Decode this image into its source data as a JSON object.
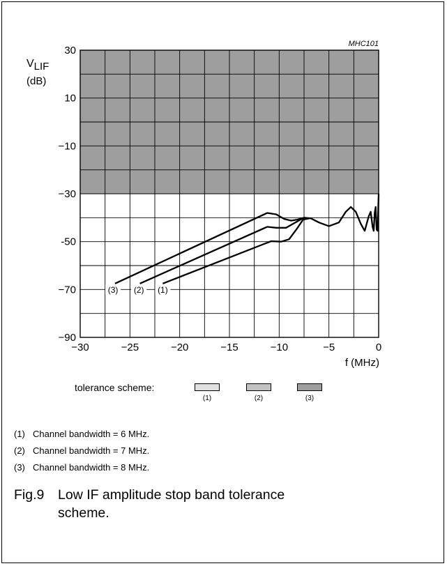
{
  "chart_data": {
    "type": "line",
    "id_label": "MHC101",
    "ylabel_main": "V",
    "ylabel_sub": "LIF",
    "ylabel_unit": "(dB)",
    "xlabel": "f (MHz)",
    "xlim": [
      -30,
      0
    ],
    "ylim": [
      -90,
      30
    ],
    "x_ticks": [
      "−30",
      "−25",
      "−20",
      "−15",
      "−10",
      "−5",
      "0"
    ],
    "x_tick_values": [
      -30,
      -25,
      -20,
      -15,
      -10,
      -5,
      0
    ],
    "y_ticks": [
      "30",
      "10",
      "−10",
      "−30",
      "-50",
      "−70",
      "−90"
    ],
    "y_tick_values": [
      30,
      10,
      -10,
      -30,
      -50,
      -70,
      -90
    ],
    "x_grid_step": 2.5,
    "y_grid_step": 10,
    "stop_band": {
      "y_from": -30,
      "y_to": 30,
      "color": "#9e9e9e"
    },
    "series": [
      {
        "label": "(3)",
        "label_x": -26.7,
        "label_y": -70,
        "points": [
          [
            -26.5,
            -67.5
          ],
          [
            -11.2,
            -38
          ],
          [
            -10.3,
            -38.6
          ],
          [
            -9.5,
            -40.5
          ],
          [
            -8.8,
            -41.2
          ],
          [
            -8.2,
            -40.8
          ],
          [
            -7.5,
            -40
          ],
          [
            -6.8,
            -40.3
          ],
          [
            -6.0,
            -42
          ],
          [
            -5.0,
            -43.5
          ],
          [
            -4.0,
            -42
          ],
          [
            -3.3,
            -37.5
          ],
          [
            -2.8,
            -35.5
          ],
          [
            -2.3,
            -37.5
          ],
          [
            -1.8,
            -42.5
          ],
          [
            -1.4,
            -45.5
          ],
          [
            -1.0,
            -39.5
          ],
          [
            -0.8,
            -37.5
          ],
          [
            -0.6,
            -44
          ],
          [
            -0.5,
            -45.5
          ],
          [
            -0.4,
            -38
          ],
          [
            -0.3,
            -35.5
          ],
          [
            -0.2,
            -45
          ],
          [
            -0.1,
            -45.5
          ],
          [
            -0.05,
            -37
          ],
          [
            0,
            -30
          ]
        ]
      },
      {
        "label": "(2)",
        "label_x": -24.1,
        "label_y": -70,
        "points": [
          [
            -24.0,
            -67.5
          ],
          [
            -11.2,
            -43.8
          ],
          [
            -10.3,
            -44.2
          ],
          [
            -9.3,
            -44.2
          ],
          [
            -8.5,
            -42.3
          ],
          [
            -7.6,
            -40.2
          ],
          [
            -7.0,
            -40.3
          ]
        ]
      },
      {
        "label": "(1)",
        "label_x": -21.7,
        "label_y": -70,
        "points": [
          [
            -21.7,
            -67.5
          ],
          [
            -10.8,
            -49.8
          ],
          [
            -9.8,
            -50
          ],
          [
            -9.0,
            -49
          ],
          [
            -8.2,
            -44.5
          ],
          [
            -7.6,
            -40.8
          ],
          [
            -7.0,
            -40.3
          ]
        ]
      }
    ]
  },
  "tolerance": {
    "label": "tolerance scheme:",
    "swatches": [
      {
        "label": "(1)",
        "color": "#e0e0e0"
      },
      {
        "label": "(2)",
        "color": "#c2c2c2"
      },
      {
        "label": "(3)",
        "color": "#9e9e9e"
      }
    ]
  },
  "notes": [
    {
      "num": "(1)",
      "text": "Channel bandwidth = 6 MHz."
    },
    {
      "num": "(2)",
      "text": "Channel bandwidth = 7 MHz."
    },
    {
      "num": "(3)",
      "text": "Channel bandwidth = 8 MHz."
    }
  ],
  "caption": {
    "fig": "Fig.9",
    "text": "Low IF amplitude stop band tolerance scheme."
  }
}
